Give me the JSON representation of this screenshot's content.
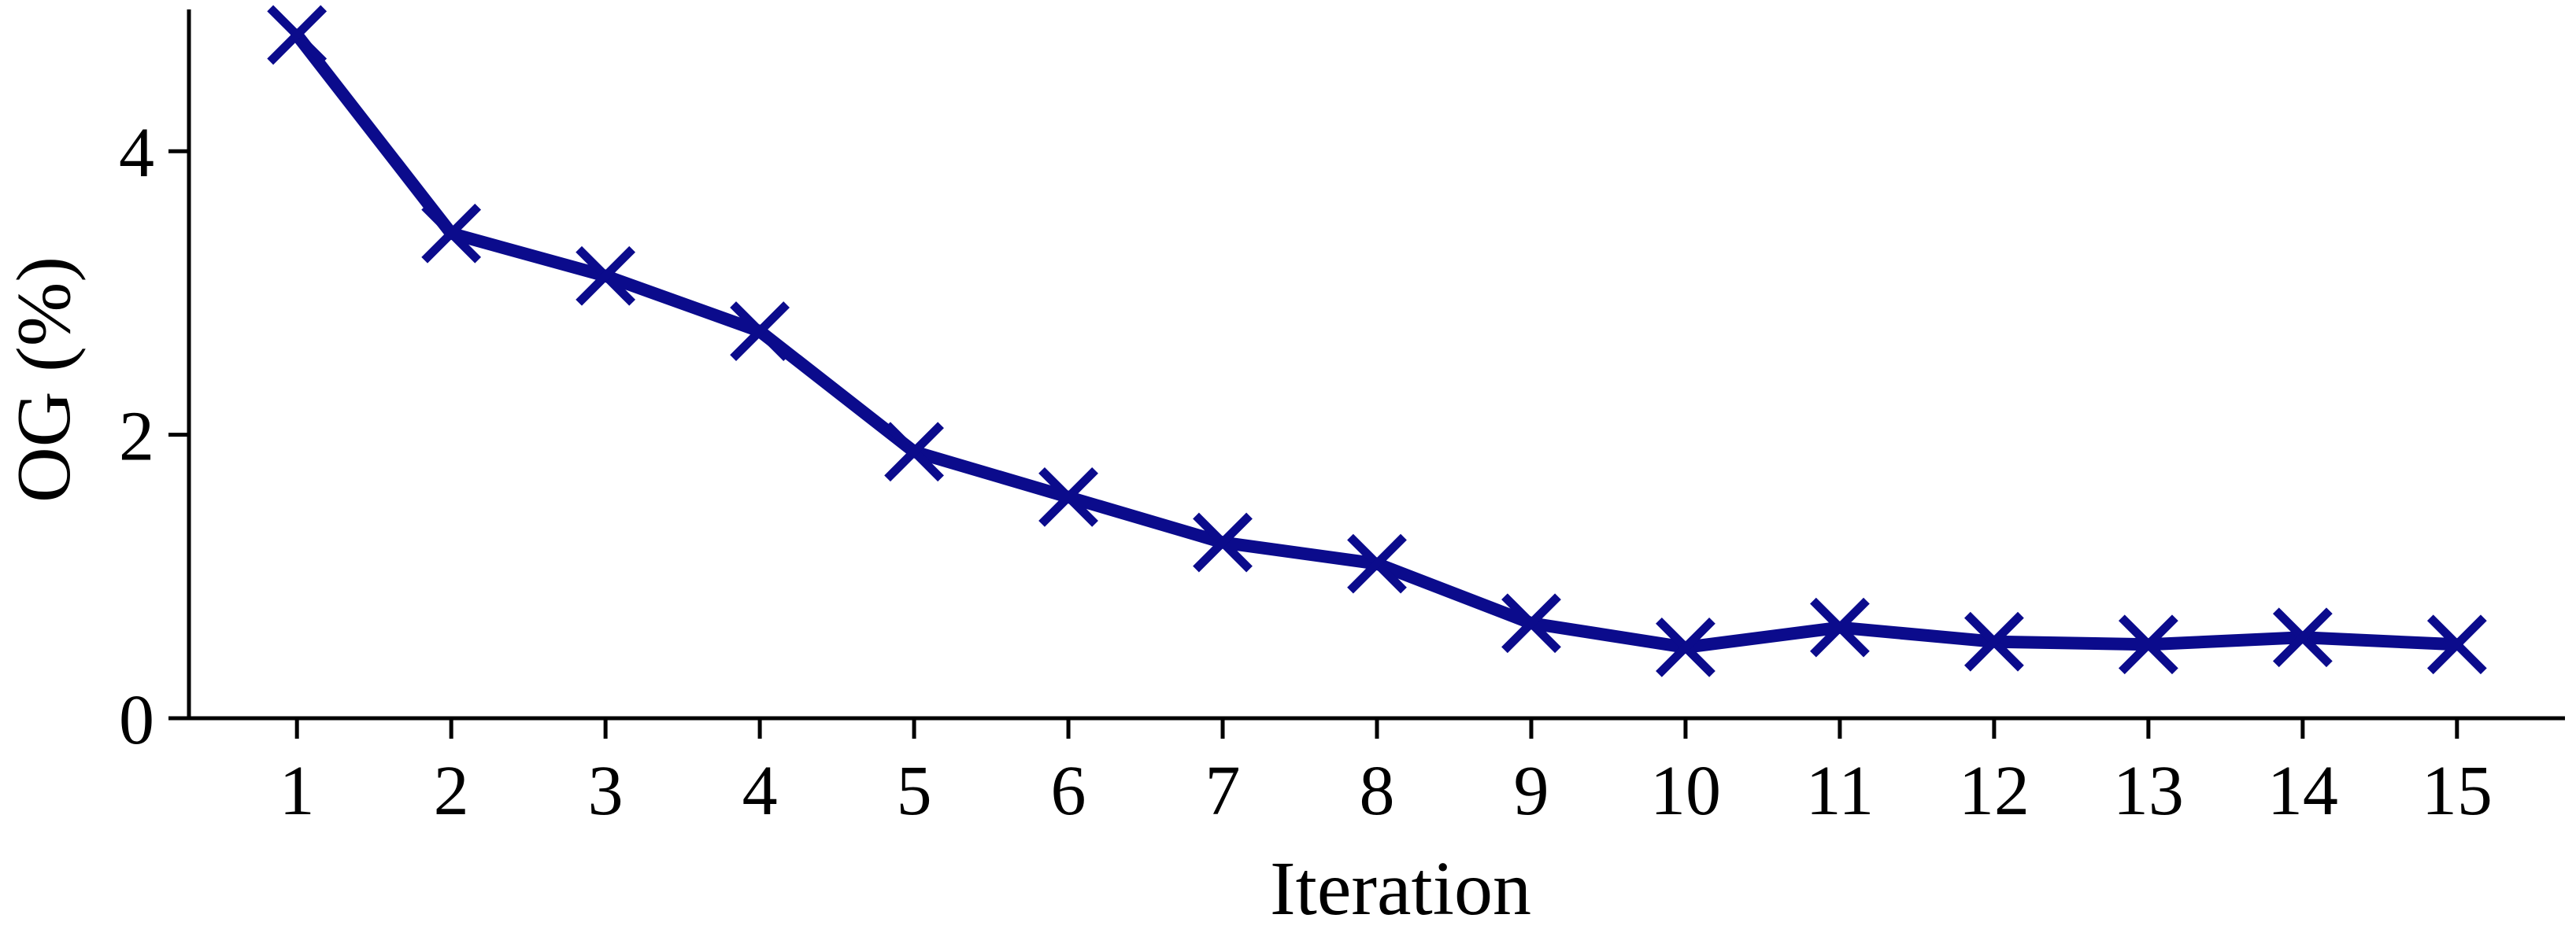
{
  "chart_data": {
    "type": "line",
    "title": "",
    "xlabel": "Iteration",
    "ylabel": "OG (%)",
    "x": [
      1,
      2,
      3,
      4,
      5,
      6,
      7,
      8,
      9,
      10,
      11,
      12,
      13,
      14,
      15
    ],
    "series": [
      {
        "values": [
          4.82,
          3.42,
          3.12,
          2.73,
          1.88,
          1.56,
          1.24,
          1.09,
          0.67,
          0.5,
          0.64,
          0.54,
          0.52,
          0.57,
          0.52
        ],
        "color": "#0b0b8c",
        "marker": "x"
      }
    ],
    "xlim": [
      0.3,
      15.7
    ],
    "ylim": [
      0,
      5
    ],
    "yticks": [
      0,
      2,
      4
    ],
    "xticks": [
      1,
      2,
      3,
      4,
      5,
      6,
      7,
      8,
      9,
      10,
      11,
      12,
      13,
      14,
      15
    ],
    "grid": false,
    "legend": "none"
  }
}
